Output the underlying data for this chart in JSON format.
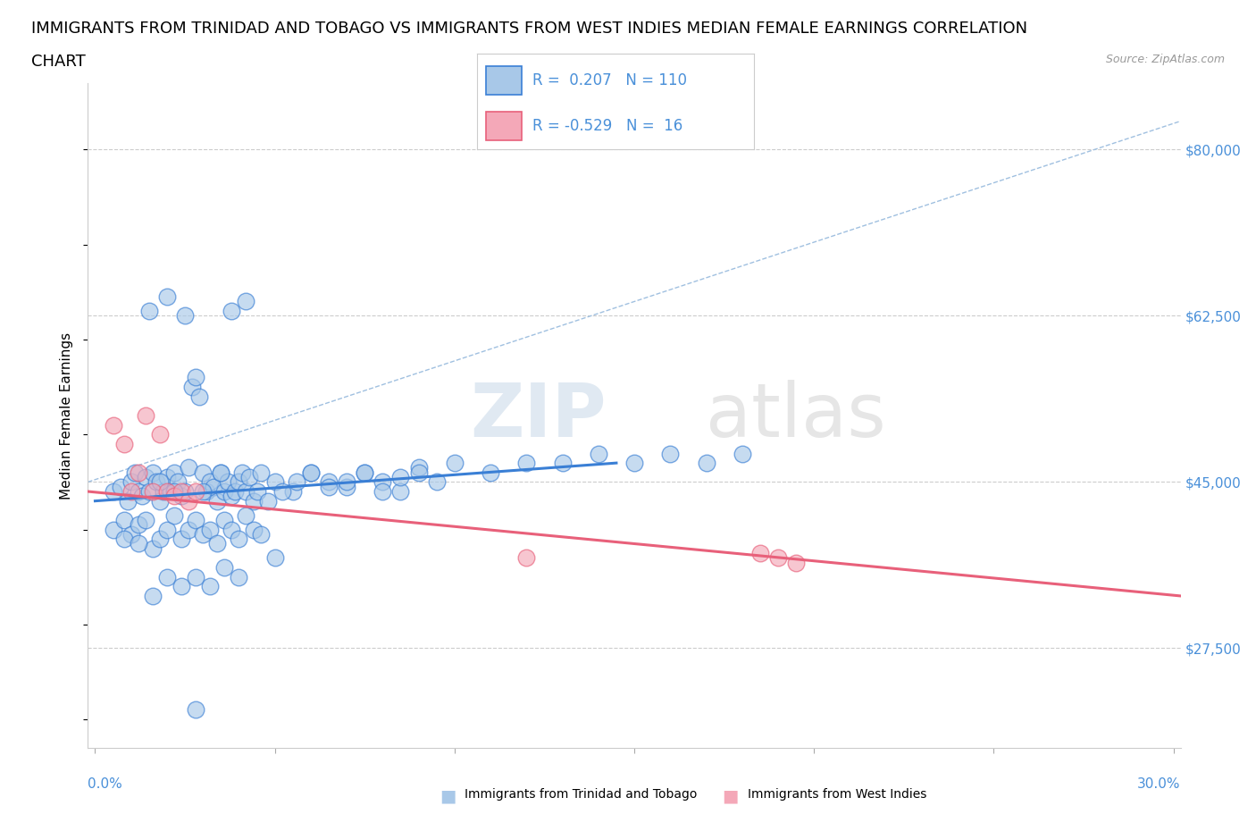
{
  "title_line1": "IMMIGRANTS FROM TRINIDAD AND TOBAGO VS IMMIGRANTS FROM WEST INDIES MEDIAN FEMALE EARNINGS CORRELATION",
  "title_line2": "CHART",
  "source": "Source: ZipAtlas.com",
  "ylabel": "Median Female Earnings",
  "ytick_labels": [
    "$27,500",
    "$45,000",
    "$62,500",
    "$80,000"
  ],
  "ytick_values": [
    27500,
    45000,
    62500,
    80000
  ],
  "ylim": [
    17000,
    87000
  ],
  "xlim": [
    -0.002,
    0.302
  ],
  "R_blue": 0.207,
  "N_blue": 110,
  "R_pink": -0.529,
  "N_pink": 16,
  "legend_label_blue": "Immigrants from Trinidad and Tobago",
  "legend_label_pink": "Immigrants from West Indies",
  "blue_color": "#a8c8e8",
  "pink_color": "#f4a8b8",
  "blue_line_color": "#3a7fd5",
  "pink_line_color": "#e8607a",
  "dash_line_color": "#a0c0e0",
  "title_fontsize": 13,
  "blue_scatter_x": [
    0.005,
    0.007,
    0.009,
    0.01,
    0.011,
    0.012,
    0.013,
    0.014,
    0.015,
    0.016,
    0.017,
    0.018,
    0.019,
    0.02,
    0.021,
    0.022,
    0.023,
    0.024,
    0.025,
    0.026,
    0.027,
    0.028,
    0.029,
    0.03,
    0.031,
    0.032,
    0.033,
    0.034,
    0.035,
    0.036,
    0.037,
    0.038,
    0.039,
    0.04,
    0.041,
    0.042,
    0.043,
    0.044,
    0.045,
    0.046,
    0.005,
    0.008,
    0.01,
    0.012,
    0.014,
    0.016,
    0.018,
    0.02,
    0.022,
    0.024,
    0.026,
    0.028,
    0.03,
    0.032,
    0.034,
    0.036,
    0.038,
    0.04,
    0.042,
    0.044,
    0.046,
    0.05,
    0.055,
    0.06,
    0.065,
    0.07,
    0.075,
    0.08,
    0.085,
    0.09,
    0.048,
    0.052,
    0.056,
    0.06,
    0.065,
    0.07,
    0.075,
    0.08,
    0.085,
    0.09,
    0.095,
    0.1,
    0.11,
    0.12,
    0.13,
    0.14,
    0.15,
    0.16,
    0.17,
    0.18,
    0.038,
    0.042,
    0.015,
    0.02,
    0.025,
    0.03,
    0.035,
    0.018,
    0.022,
    0.028,
    0.008,
    0.012,
    0.016,
    0.02,
    0.024,
    0.028,
    0.032,
    0.036,
    0.04,
    0.05
  ],
  "blue_scatter_y": [
    44000,
    44500,
    43000,
    45000,
    46000,
    44000,
    43500,
    45500,
    44000,
    46000,
    45000,
    43000,
    44000,
    45500,
    44000,
    46000,
    45000,
    43500,
    44000,
    46500,
    55000,
    56000,
    54000,
    46000,
    44000,
    45000,
    44500,
    43000,
    46000,
    44000,
    45000,
    43500,
    44000,
    45000,
    46000,
    44000,
    45500,
    43000,
    44000,
    46000,
    40000,
    41000,
    39500,
    40500,
    41000,
    38000,
    39000,
    40000,
    41500,
    39000,
    40000,
    41000,
    39500,
    40000,
    38500,
    41000,
    40000,
    39000,
    41500,
    40000,
    39500,
    45000,
    44000,
    46000,
    45000,
    44500,
    46000,
    45000,
    44000,
    46500,
    43000,
    44000,
    45000,
    46000,
    44500,
    45000,
    46000,
    44000,
    45500,
    46000,
    45000,
    47000,
    46000,
    47000,
    47000,
    48000,
    47000,
    48000,
    47000,
    48000,
    63000,
    64000,
    63000,
    64500,
    62500,
    44000,
    46000,
    45000,
    44000,
    21000,
    39000,
    38500,
    33000,
    35000,
    34000,
    35000,
    34000,
    36000,
    35000,
    37000
  ],
  "pink_scatter_x": [
    0.005,
    0.008,
    0.01,
    0.012,
    0.014,
    0.016,
    0.018,
    0.02,
    0.022,
    0.024,
    0.026,
    0.028,
    0.12,
    0.185,
    0.19,
    0.195
  ],
  "pink_scatter_y": [
    51000,
    49000,
    44000,
    46000,
    52000,
    44000,
    50000,
    44000,
    43500,
    44000,
    43000,
    44000,
    37000,
    37500,
    37000,
    36500
  ]
}
